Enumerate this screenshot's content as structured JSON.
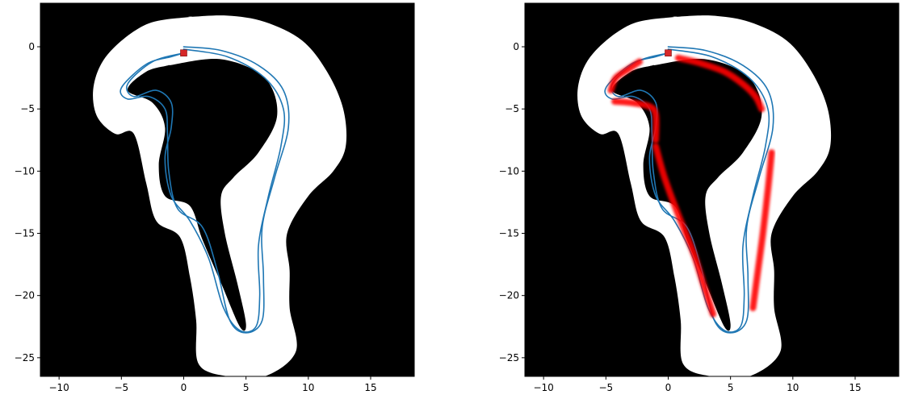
{
  "chart_data": [
    {
      "type": "line",
      "title": "",
      "xlabel": "",
      "ylabel": "",
      "xlim": [
        -11.5,
        18.5
      ],
      "ylim": [
        -26.5,
        3.5
      ],
      "xticks": [
        -10,
        -5,
        0,
        5,
        10,
        15
      ],
      "yticks": [
        0,
        -5,
        -10,
        -15,
        -20,
        -25
      ],
      "xtick_labels": [
        "−10",
        "−5",
        "0",
        "5",
        "10",
        "15"
      ],
      "ytick_labels": [
        "0",
        "−5",
        "−10",
        "−15",
        "−20",
        "−25"
      ],
      "grid": false,
      "background_color": "#000000",
      "track_color": "#ffffff",
      "line_color": "#1f77b4",
      "marker_color": "#d62728",
      "start_marker": {
        "x": 0,
        "y": -0.5
      },
      "track_outer": [
        [
          0.5,
          2.4
        ],
        [
          3.5,
          2.5
        ],
        [
          6.5,
          2.0
        ],
        [
          9.5,
          0.5
        ],
        [
          11.5,
          -2.0
        ],
        [
          12.8,
          -5.0
        ],
        [
          13.0,
          -8.0
        ],
        [
          12.0,
          -10.0
        ],
        [
          10.0,
          -12.0
        ],
        [
          8.3,
          -15.0
        ],
        [
          8.5,
          -18.0
        ],
        [
          8.5,
          -21.0
        ],
        [
          9.0,
          -24.5
        ],
        [
          6.5,
          -26.5
        ],
        [
          3.5,
          -26.5
        ],
        [
          1.2,
          -25.5
        ],
        [
          1.0,
          -22.0
        ],
        [
          0.5,
          -18.5
        ],
        [
          -0.3,
          -15.3
        ],
        [
          -2.2,
          -14.0
        ],
        [
          -3.0,
          -11.0
        ],
        [
          -4.0,
          -7.0
        ],
        [
          -5.5,
          -7.0
        ],
        [
          -7.0,
          -5.5
        ],
        [
          -7.2,
          -3.0
        ],
        [
          -6.0,
          -0.5
        ],
        [
          -3.0,
          1.8
        ],
        [
          0.5,
          2.4
        ]
      ],
      "track_hole": [
        [
          -1.2,
          -1.5
        ],
        [
          3.0,
          -1.0
        ],
        [
          6.5,
          -2.5
        ],
        [
          7.5,
          -5.5
        ],
        [
          6.0,
          -8.5
        ],
        [
          4.0,
          -10.5
        ],
        [
          3.0,
          -12.0
        ],
        [
          3.3,
          -15.0
        ],
        [
          4.3,
          -19.0
        ],
        [
          5.0,
          -22.3
        ],
        [
          4.5,
          -22.5
        ],
        [
          3.0,
          -19.0
        ],
        [
          1.5,
          -15.5
        ],
        [
          0.5,
          -12.8
        ],
        [
          -1.5,
          -12.0
        ],
        [
          -2.0,
          -9.5
        ],
        [
          -1.5,
          -6.5
        ],
        [
          -2.5,
          -4.5
        ],
        [
          -4.5,
          -3.5
        ],
        [
          -3.0,
          -2.0
        ],
        [
          -1.2,
          -1.5
        ]
      ],
      "series": [
        {
          "values": [
            [
              0,
              0
            ],
            [
              3,
              -0.3
            ],
            [
              6,
              -1.5
            ],
            [
              8,
              -3.5
            ],
            [
              8.4,
              -6.5
            ],
            [
              7.3,
              -10.5
            ],
            [
              6.3,
              -14.5
            ],
            [
              6.4,
              -18.5
            ],
            [
              6.3,
              -22.0
            ],
            [
              5.0,
              -23.0
            ],
            [
              3.7,
              -22.0
            ],
            [
              2.7,
              -18.0
            ],
            [
              1.5,
              -14.5
            ],
            [
              -0.5,
              -13.0
            ],
            [
              -1.2,
              -10.0
            ],
            [
              -1.3,
              -7.0
            ],
            [
              -1.5,
              -5.0
            ],
            [
              -2.8,
              -4.0
            ],
            [
              -4.5,
              -4.2
            ],
            [
              -5.0,
              -3.3
            ],
            [
              -3.0,
              -1.4
            ],
            [
              -1.0,
              -0.8
            ],
            [
              0,
              -0.5
            ]
          ]
        },
        {
          "values": [
            [
              0,
              -0.2
            ],
            [
              3.5,
              -0.8
            ],
            [
              6.5,
              -2.5
            ],
            [
              8.0,
              -5.0
            ],
            [
              7.8,
              -8.0
            ],
            [
              6.8,
              -12.0
            ],
            [
              6.0,
              -16.0
            ],
            [
              6.1,
              -20.0
            ],
            [
              5.8,
              -22.5
            ],
            [
              4.5,
              -22.8
            ],
            [
              3.2,
              -21.0
            ],
            [
              2.0,
              -17.0
            ],
            [
              0.5,
              -14.0
            ],
            [
              -1.0,
              -12.0
            ],
            [
              -1.5,
              -9.0
            ],
            [
              -1.0,
              -6.5
            ],
            [
              -1.0,
              -4.5
            ],
            [
              -2.2,
              -3.5
            ],
            [
              -4.0,
              -4.0
            ],
            [
              -4.5,
              -3.0
            ],
            [
              -2.5,
              -1.2
            ],
            [
              0,
              -0.5
            ]
          ]
        }
      ]
    },
    {
      "type": "line",
      "title": "",
      "xlabel": "",
      "ylabel": "",
      "xlim": [
        -11.5,
        18.5
      ],
      "ylim": [
        -26.5,
        3.5
      ],
      "xticks": [
        -10,
        -5,
        0,
        5,
        10,
        15
      ],
      "yticks": [
        0,
        -5,
        -10,
        -15,
        -20,
        -25
      ],
      "xtick_labels": [
        "−10",
        "−5",
        "0",
        "5",
        "10",
        "15"
      ],
      "ytick_labels": [
        "0",
        "−5",
        "−10",
        "−15",
        "−20",
        "−25"
      ],
      "grid": false,
      "background_color": "#000000",
      "track_color": "#ffffff",
      "line_color": "#1f77b4",
      "marker_color": "#d62728",
      "highlight_color": "#ff0000",
      "start_marker": {
        "x": 0,
        "y": -0.5
      },
      "track_outer": [
        [
          0.5,
          2.4
        ],
        [
          3.5,
          2.5
        ],
        [
          6.5,
          2.0
        ],
        [
          9.5,
          0.5
        ],
        [
          11.5,
          -2.0
        ],
        [
          12.8,
          -5.0
        ],
        [
          13.0,
          -8.0
        ],
        [
          12.0,
          -10.0
        ],
        [
          10.0,
          -12.0
        ],
        [
          8.3,
          -15.0
        ],
        [
          8.5,
          -18.0
        ],
        [
          8.5,
          -21.0
        ],
        [
          9.0,
          -24.5
        ],
        [
          6.5,
          -26.5
        ],
        [
          3.5,
          -26.5
        ],
        [
          1.2,
          -25.5
        ],
        [
          1.0,
          -22.0
        ],
        [
          0.5,
          -18.5
        ],
        [
          -0.3,
          -15.3
        ],
        [
          -2.2,
          -14.0
        ],
        [
          -3.0,
          -11.0
        ],
        [
          -4.0,
          -7.0
        ],
        [
          -5.5,
          -7.0
        ],
        [
          -7.0,
          -5.5
        ],
        [
          -7.2,
          -3.0
        ],
        [
          -6.0,
          -0.5
        ],
        [
          -3.0,
          1.8
        ],
        [
          0.5,
          2.4
        ]
      ],
      "track_hole": [
        [
          -1.2,
          -1.5
        ],
        [
          3.0,
          -1.0
        ],
        [
          6.5,
          -2.5
        ],
        [
          7.5,
          -5.5
        ],
        [
          6.0,
          -8.5
        ],
        [
          4.0,
          -10.5
        ],
        [
          3.0,
          -12.0
        ],
        [
          3.3,
          -15.0
        ],
        [
          4.3,
          -19.0
        ],
        [
          5.0,
          -22.3
        ],
        [
          4.5,
          -22.5
        ],
        [
          3.0,
          -19.0
        ],
        [
          1.5,
          -15.5
        ],
        [
          0.5,
          -12.8
        ],
        [
          -1.5,
          -12.0
        ],
        [
          -2.0,
          -9.5
        ],
        [
          -1.5,
          -6.5
        ],
        [
          -2.5,
          -4.5
        ],
        [
          -4.5,
          -3.5
        ],
        [
          -3.0,
          -2.0
        ],
        [
          -1.2,
          -1.5
        ]
      ],
      "series": [
        {
          "values": [
            [
              0,
              0
            ],
            [
              3,
              -0.3
            ],
            [
              6,
              -1.5
            ],
            [
              8,
              -3.5
            ],
            [
              8.4,
              -6.5
            ],
            [
              7.3,
              -10.5
            ],
            [
              6.3,
              -14.5
            ],
            [
              6.4,
              -18.5
            ],
            [
              6.3,
              -22.0
            ],
            [
              5.0,
              -23.0
            ],
            [
              3.7,
              -22.0
            ],
            [
              2.7,
              -18.0
            ],
            [
              1.5,
              -14.5
            ],
            [
              -0.5,
              -13.0
            ],
            [
              -1.2,
              -10.0
            ],
            [
              -1.3,
              -7.0
            ],
            [
              -1.5,
              -5.0
            ],
            [
              -2.8,
              -4.0
            ],
            [
              -4.5,
              -4.2
            ],
            [
              -5.0,
              -3.3
            ],
            [
              -3.0,
              -1.4
            ],
            [
              -1.0,
              -0.8
            ],
            [
              0,
              -0.5
            ]
          ]
        },
        {
          "values": [
            [
              0,
              -0.2
            ],
            [
              3.5,
              -0.8
            ],
            [
              6.5,
              -2.5
            ],
            [
              8.0,
              -5.0
            ],
            [
              7.8,
              -8.0
            ],
            [
              6.8,
              -12.0
            ],
            [
              6.0,
              -16.0
            ],
            [
              6.1,
              -20.0
            ],
            [
              5.8,
              -22.5
            ],
            [
              4.5,
              -22.8
            ],
            [
              3.2,
              -21.0
            ],
            [
              2.0,
              -17.0
            ],
            [
              0.5,
              -14.0
            ],
            [
              -1.0,
              -12.0
            ],
            [
              -1.5,
              -9.0
            ],
            [
              -1.0,
              -6.5
            ],
            [
              -1.0,
              -4.5
            ],
            [
              -2.2,
              -3.5
            ],
            [
              -4.0,
              -4.0
            ],
            [
              -4.5,
              -3.0
            ],
            [
              -2.5,
              -1.2
            ],
            [
              0,
              -0.5
            ]
          ]
        }
      ],
      "highlights": [
        [
          [
            -2.3,
            -1.2
          ],
          [
            -3.2,
            -1.8
          ],
          [
            -4.2,
            -2.5
          ],
          [
            -4.6,
            -3.5
          ]
        ],
        [
          [
            -4.3,
            -4.4
          ],
          [
            -3.0,
            -4.5
          ],
          [
            -1.5,
            -4.8
          ],
          [
            -1.0,
            -5.5
          ],
          [
            -1.0,
            -7.5
          ]
        ],
        [
          [
            0.8,
            -0.9
          ],
          [
            2.5,
            -1.3
          ],
          [
            4.5,
            -2.0
          ],
          [
            6.0,
            -3.0
          ],
          [
            7.0,
            -4.0
          ],
          [
            7.5,
            -5.0
          ]
        ],
        [
          [
            -1.0,
            -8.0
          ],
          [
            -0.3,
            -10.5
          ],
          [
            0.8,
            -13.5
          ],
          [
            2.0,
            -16.5
          ],
          [
            2.8,
            -19.0
          ],
          [
            3.6,
            -21.5
          ]
        ],
        [
          [
            8.3,
            -8.5
          ],
          [
            8.0,
            -11.5
          ],
          [
            7.6,
            -15.0
          ],
          [
            7.2,
            -18.0
          ],
          [
            6.8,
            -21.0
          ]
        ]
      ]
    }
  ]
}
